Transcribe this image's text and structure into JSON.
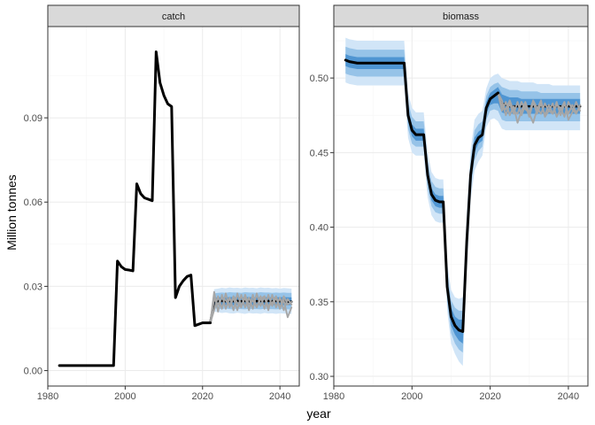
{
  "chart_data": {
    "type": "line",
    "xlabel": "year",
    "ylabel": "Million tonnes",
    "colors": {
      "historical": "#000000",
      "iteration": "#a6a6a6",
      "band_outer": "#d1e5f7",
      "band_mid": "#96c3e8",
      "band_inner": "#4f95d2",
      "strip_fill": "#d9d9d9"
    },
    "panels": [
      {
        "strip": "catch",
        "xlim": [
          1980,
          2045
        ],
        "ylim": [
          -0.0055,
          0.1225
        ],
        "x_breaks": [
          1980,
          2000,
          2020,
          2040
        ],
        "y_breaks": [
          0.0,
          0.03,
          0.06,
          0.09
        ],
        "y_labels": [
          "0.00",
          "0.03",
          "0.06",
          "0.09"
        ],
        "historical": {
          "x": [
            1983,
            1997,
            1998,
            1999,
            2000,
            2001,
            2002,
            2003,
            2004,
            2005,
            2006,
            2007,
            2008,
            2009,
            2010,
            2011,
            2012,
            2013,
            2014,
            2015,
            2016,
            2017,
            2018,
            2019,
            2020,
            2021,
            2022
          ],
          "y": [
            0.0018,
            0.0018,
            0.039,
            0.037,
            0.036,
            0.0358,
            0.0355,
            0.0665,
            0.063,
            0.0615,
            0.061,
            0.0605,
            0.1135,
            0.1025,
            0.098,
            0.095,
            0.094,
            0.026,
            0.03,
            0.032,
            0.0335,
            0.034,
            0.016,
            0.0165,
            0.017,
            0.017,
            0.017
          ]
        },
        "projection_x": [
          2022,
          2023,
          2024,
          2025,
          2026,
          2027,
          2028,
          2029,
          2030,
          2031,
          2032,
          2033,
          2034,
          2035,
          2036,
          2037,
          2038,
          2039,
          2040,
          2041,
          2042,
          2043
        ],
        "bands": {
          "outer_lower": [
            0.017,
            0.021,
            0.0208,
            0.0205,
            0.0207,
            0.0204,
            0.0203,
            0.0206,
            0.0204,
            0.0202,
            0.0205,
            0.0203,
            0.0204,
            0.0202,
            0.0205,
            0.0203,
            0.0204,
            0.0202,
            0.0204,
            0.0203,
            0.0202,
            0.0202
          ],
          "outer_upper": [
            0.017,
            0.029,
            0.0292,
            0.0295,
            0.0293,
            0.0296,
            0.0294,
            0.0295,
            0.0293,
            0.0296,
            0.0294,
            0.0295,
            0.0293,
            0.0296,
            0.0294,
            0.0295,
            0.0293,
            0.0294,
            0.0292,
            0.0294,
            0.0293,
            0.0292
          ],
          "mid_lower": [
            0.017,
            0.0222,
            0.022,
            0.0219,
            0.0221,
            0.0219,
            0.0218,
            0.022,
            0.0219,
            0.0218,
            0.022,
            0.0219,
            0.0219,
            0.0218,
            0.022,
            0.0219,
            0.0219,
            0.0218,
            0.0219,
            0.0219,
            0.0218,
            0.0218
          ],
          "mid_upper": [
            0.017,
            0.0275,
            0.0277,
            0.0278,
            0.0277,
            0.0279,
            0.0278,
            0.0278,
            0.0277,
            0.0279,
            0.0278,
            0.0278,
            0.0277,
            0.0279,
            0.0278,
            0.0278,
            0.0277,
            0.0278,
            0.0277,
            0.0278,
            0.0277,
            0.0277
          ],
          "inner_lower": [
            0.017,
            0.0235,
            0.0234,
            0.0233,
            0.0234,
            0.0233,
            0.0233,
            0.0234,
            0.0233,
            0.0233,
            0.0234,
            0.0233,
            0.0233,
            0.0233,
            0.0234,
            0.0233,
            0.0233,
            0.0233,
            0.0233,
            0.0233,
            0.0233,
            0.0233
          ],
          "inner_upper": [
            0.017,
            0.026,
            0.0261,
            0.0262,
            0.0261,
            0.0262,
            0.0262,
            0.0262,
            0.0261,
            0.0262,
            0.0262,
            0.0262,
            0.0261,
            0.0262,
            0.0262,
            0.0262,
            0.0261,
            0.0262,
            0.0261,
            0.0262,
            0.0261,
            0.0261
          ]
        },
        "median": [
          0.017,
          0.0248,
          0.0247,
          0.0248,
          0.0247,
          0.0248,
          0.0247,
          0.0248,
          0.0247,
          0.0248,
          0.0247,
          0.0248,
          0.0247,
          0.0248,
          0.0247,
          0.0248,
          0.0247,
          0.0248,
          0.0247,
          0.0248,
          0.0246,
          0.0245
        ],
        "iterations": [
          [
            0.017,
            0.028,
            0.021,
            0.027,
            0.022,
            0.026,
            0.0215,
            0.0275,
            0.023,
            0.026,
            0.0215,
            0.027,
            0.0225,
            0.0265,
            0.022,
            0.027,
            0.023,
            0.026,
            0.022,
            0.0265,
            0.0235,
            0.0245
          ],
          [
            0.017,
            0.0215,
            0.0265,
            0.022,
            0.0275,
            0.0225,
            0.026,
            0.0215,
            0.027,
            0.0225,
            0.026,
            0.022,
            0.0275,
            0.023,
            0.0265,
            0.0215,
            0.027,
            0.0225,
            0.026,
            0.0215,
            0.0255,
            0.0235
          ],
          [
            0.017,
            0.0255,
            0.0235,
            0.026,
            0.025,
            0.023,
            0.0265,
            0.024,
            0.0225,
            0.027,
            0.0235,
            0.025,
            0.0225,
            0.0255,
            0.0265,
            0.023,
            0.024,
            0.0265,
            0.0225,
            0.025,
            0.019,
            0.0225
          ]
        ]
      },
      {
        "strip": "biomass",
        "xlim": [
          1980,
          2045
        ],
        "ylim": [
          0.2935,
          0.5345
        ],
        "x_breaks": [
          1980,
          2000,
          2020,
          2040
        ],
        "y_breaks": [
          0.3,
          0.35,
          0.4,
          0.45,
          0.5
        ],
        "y_labels": [
          "0.30",
          "0.35",
          "0.40",
          "0.45",
          "0.50"
        ],
        "historical": {
          "x": [
            1983,
            1984,
            1986,
            1990,
            1995,
            1998,
            1999,
            2000,
            2001,
            2002,
            2003,
            2004,
            2005,
            2006,
            2007,
            2008,
            2009,
            2010,
            2011,
            2012,
            2013,
            2014,
            2015,
            2016,
            2017,
            2018,
            2019,
            2020,
            2021,
            2022
          ],
          "y": [
            0.512,
            0.511,
            0.51,
            0.51,
            0.51,
            0.51,
            0.475,
            0.465,
            0.462,
            0.462,
            0.462,
            0.435,
            0.422,
            0.418,
            0.417,
            0.417,
            0.36,
            0.34,
            0.334,
            0.331,
            0.33,
            0.39,
            0.435,
            0.455,
            0.46,
            0.462,
            0.48,
            0.486,
            0.488,
            0.49
          ]
        },
        "band_x": [
          1983,
          1984,
          1986,
          1990,
          1995,
          1998,
          1999,
          2000,
          2001,
          2002,
          2003,
          2004,
          2005,
          2006,
          2007,
          2008,
          2009,
          2010,
          2011,
          2012,
          2013,
          2014,
          2015,
          2016,
          2017,
          2018,
          2019,
          2020,
          2021,
          2022,
          2023,
          2024,
          2025,
          2026,
          2027,
          2028,
          2029,
          2030,
          2031,
          2032,
          2033,
          2034,
          2035,
          2036,
          2037,
          2038,
          2039,
          2040,
          2041,
          2042,
          2043
        ],
        "bands": {
          "outer_lower": [
            0.497,
            0.496,
            0.495,
            0.495,
            0.495,
            0.495,
            0.46,
            0.45,
            0.448,
            0.448,
            0.448,
            0.42,
            0.408,
            0.404,
            0.403,
            0.403,
            0.344,
            0.322,
            0.315,
            0.31,
            0.307,
            0.37,
            0.418,
            0.438,
            0.444,
            0.448,
            0.467,
            0.472,
            0.473,
            0.471,
            0.466,
            0.465,
            0.465,
            0.465,
            0.465,
            0.465,
            0.465,
            0.465,
            0.465,
            0.465,
            0.465,
            0.465,
            0.465,
            0.465,
            0.465,
            0.465,
            0.465,
            0.465,
            0.465,
            0.465,
            0.465
          ],
          "outer_upper": [
            0.527,
            0.526,
            0.525,
            0.525,
            0.525,
            0.525,
            0.49,
            0.48,
            0.477,
            0.477,
            0.477,
            0.45,
            0.437,
            0.433,
            0.432,
            0.432,
            0.376,
            0.358,
            0.353,
            0.352,
            0.353,
            0.41,
            0.452,
            0.472,
            0.476,
            0.478,
            0.493,
            0.5,
            0.502,
            0.503,
            0.5,
            0.499,
            0.498,
            0.498,
            0.498,
            0.497,
            0.497,
            0.497,
            0.497,
            0.496,
            0.496,
            0.496,
            0.496,
            0.495,
            0.495,
            0.495,
            0.495,
            0.495,
            0.495,
            0.495,
            0.495
          ],
          "mid_lower": [
            0.503,
            0.502,
            0.501,
            0.501,
            0.501,
            0.501,
            0.466,
            0.456,
            0.454,
            0.454,
            0.454,
            0.426,
            0.414,
            0.41,
            0.409,
            0.409,
            0.35,
            0.329,
            0.322,
            0.318,
            0.316,
            0.378,
            0.425,
            0.445,
            0.451,
            0.454,
            0.472,
            0.478,
            0.479,
            0.478,
            0.472,
            0.471,
            0.471,
            0.471,
            0.471,
            0.471,
            0.471,
            0.471,
            0.471,
            0.471,
            0.471,
            0.471,
            0.471,
            0.471,
            0.471,
            0.471,
            0.471,
            0.471,
            0.471,
            0.471,
            0.471
          ],
          "mid_upper": [
            0.521,
            0.52,
            0.519,
            0.519,
            0.519,
            0.519,
            0.484,
            0.474,
            0.471,
            0.471,
            0.471,
            0.444,
            0.431,
            0.427,
            0.426,
            0.426,
            0.37,
            0.351,
            0.346,
            0.344,
            0.344,
            0.402,
            0.445,
            0.465,
            0.469,
            0.471,
            0.488,
            0.494,
            0.496,
            0.497,
            0.494,
            0.493,
            0.492,
            0.492,
            0.492,
            0.491,
            0.491,
            0.491,
            0.491,
            0.491,
            0.49,
            0.49,
            0.49,
            0.49,
            0.49,
            0.49,
            0.49,
            0.49,
            0.49,
            0.49,
            0.49
          ],
          "inner_lower": [
            0.508,
            0.507,
            0.506,
            0.506,
            0.506,
            0.506,
            0.471,
            0.461,
            0.458,
            0.458,
            0.458,
            0.431,
            0.418,
            0.414,
            0.413,
            0.413,
            0.355,
            0.334,
            0.328,
            0.324,
            0.322,
            0.384,
            0.43,
            0.45,
            0.456,
            0.458,
            0.476,
            0.482,
            0.483,
            0.483,
            0.477,
            0.476,
            0.476,
            0.476,
            0.476,
            0.476,
            0.476,
            0.476,
            0.476,
            0.476,
            0.476,
            0.476,
            0.476,
            0.476,
            0.476,
            0.476,
            0.476,
            0.476,
            0.476,
            0.476,
            0.476
          ],
          "inner_upper": [
            0.516,
            0.515,
            0.514,
            0.514,
            0.514,
            0.514,
            0.479,
            0.469,
            0.466,
            0.466,
            0.466,
            0.439,
            0.426,
            0.422,
            0.421,
            0.421,
            0.365,
            0.346,
            0.34,
            0.338,
            0.338,
            0.396,
            0.44,
            0.46,
            0.464,
            0.466,
            0.484,
            0.49,
            0.492,
            0.494,
            0.489,
            0.488,
            0.487,
            0.487,
            0.487,
            0.486,
            0.486,
            0.486,
            0.486,
            0.486,
            0.486,
            0.486,
            0.486,
            0.486,
            0.486,
            0.486,
            0.486,
            0.486,
            0.486,
            0.486,
            0.486
          ]
        },
        "projection_x": [
          2022,
          2023,
          2024,
          2025,
          2026,
          2027,
          2028,
          2029,
          2030,
          2031,
          2032,
          2033,
          2034,
          2035,
          2036,
          2037,
          2038,
          2039,
          2040,
          2041,
          2042,
          2043
        ],
        "median": [
          0.49,
          0.483,
          0.482,
          0.481,
          0.481,
          0.481,
          0.481,
          0.481,
          0.481,
          0.481,
          0.481,
          0.481,
          0.481,
          0.481,
          0.481,
          0.481,
          0.481,
          0.481,
          0.481,
          0.481,
          0.481,
          0.481
        ],
        "iterations": [
          [
            0.49,
            0.485,
            0.475,
            0.483,
            0.476,
            0.484,
            0.475,
            0.482,
            0.474,
            0.484,
            0.476,
            0.483,
            0.475,
            0.482,
            0.476,
            0.484,
            0.475,
            0.483,
            0.476,
            0.482,
            0.477,
            0.48
          ],
          [
            0.49,
            0.478,
            0.484,
            0.475,
            0.481,
            0.47,
            0.478,
            0.484,
            0.476,
            0.47,
            0.479,
            0.485,
            0.474,
            0.478,
            0.483,
            0.474,
            0.479,
            0.484,
            0.472,
            0.477,
            0.484,
            0.478
          ],
          [
            0.49,
            0.481,
            0.479,
            0.485,
            0.478,
            0.476,
            0.484,
            0.479,
            0.477,
            0.485,
            0.48,
            0.476,
            0.483,
            0.478,
            0.476,
            0.482,
            0.48,
            0.474,
            0.484,
            0.479,
            0.476,
            0.482
          ]
        ]
      }
    ]
  }
}
